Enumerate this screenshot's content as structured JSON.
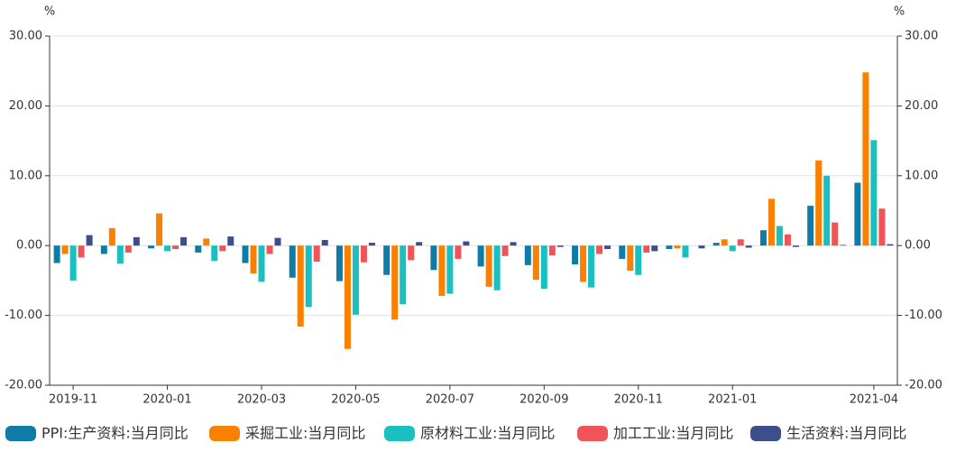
{
  "chart_data": {
    "type": "bar",
    "y_label": "%",
    "y2_label": "%",
    "categories": [
      "2019-11",
      null,
      "2020-01",
      null,
      "2020-03",
      null,
      "2020-05",
      null,
      "2020-07",
      null,
      "2020-09",
      null,
      "2020-11",
      null,
      "2021-01",
      null,
      null,
      "2021-04"
    ],
    "series": [
      {
        "name": "PPI:生产资料:当月同比",
        "color": "#0e7ca6",
        "values": [
          -2.5,
          -1.2,
          -0.4,
          -1.0,
          -2.5,
          -4.6,
          -5.1,
          -4.2,
          -3.5,
          -3.0,
          -2.8,
          -2.7,
          -1.9,
          -0.5,
          0.4,
          2.2,
          5.7,
          9.0
        ]
      },
      {
        "name": "采掘工业:当月同比",
        "color": "#f98000",
        "values": [
          -1.2,
          2.5,
          4.6,
          1.0,
          -4.0,
          -11.6,
          -14.8,
          -10.6,
          -7.2,
          -5.9,
          -4.9,
          -5.2,
          -3.6,
          -0.4,
          0.9,
          6.7,
          12.2,
          24.8
        ]
      },
      {
        "name": "原材料工业:当月同比",
        "color": "#1bbfbf",
        "values": [
          -5.0,
          -2.6,
          -0.8,
          -2.2,
          -5.2,
          -8.8,
          -9.9,
          -8.4,
          -6.9,
          -6.4,
          -6.2,
          -6.0,
          -4.2,
          -1.7,
          -0.8,
          2.8,
          10.0,
          15.1
        ]
      },
      {
        "name": "加工工业:当月同比",
        "color": "#f05459",
        "values": [
          -1.7,
          -1.0,
          -0.5,
          -0.8,
          -1.2,
          -2.3,
          -2.4,
          -2.1,
          -1.9,
          -1.5,
          -1.4,
          -1.2,
          -1.0,
          0.0,
          0.9,
          1.6,
          3.3,
          5.3
        ]
      },
      {
        "name": "生活资料:当月同比",
        "color": "#3d4f8b",
        "values": [
          1.5,
          1.2,
          1.2,
          1.3,
          1.1,
          0.8,
          0.4,
          0.5,
          0.6,
          0.5,
          -0.2,
          -0.5,
          -0.8,
          -0.4,
          -0.3,
          -0.2,
          0.1,
          0.2
        ]
      }
    ],
    "ylim": [
      -20,
      30
    ],
    "yticks": [
      {
        "value": -20,
        "label": "-20.00"
      },
      {
        "value": -10,
        "label": "-10.00"
      },
      {
        "value": 0,
        "label": "0.00"
      },
      {
        "value": 10,
        "label": "10.00"
      },
      {
        "value": 20,
        "label": "20.00"
      },
      {
        "value": 30,
        "label": "30.00"
      }
    ],
    "y2lim": [
      -20,
      30
    ],
    "y2ticks": [
      {
        "value": -20,
        "label": "-20.00"
      },
      {
        "value": -10,
        "label": "-10.00"
      },
      {
        "value": 0,
        "label": "0.00"
      },
      {
        "value": 10,
        "label": "10.00"
      },
      {
        "value": 20,
        "label": "20.00"
      },
      {
        "value": 30,
        "label": "30.00"
      }
    ],
    "grid": true
  }
}
